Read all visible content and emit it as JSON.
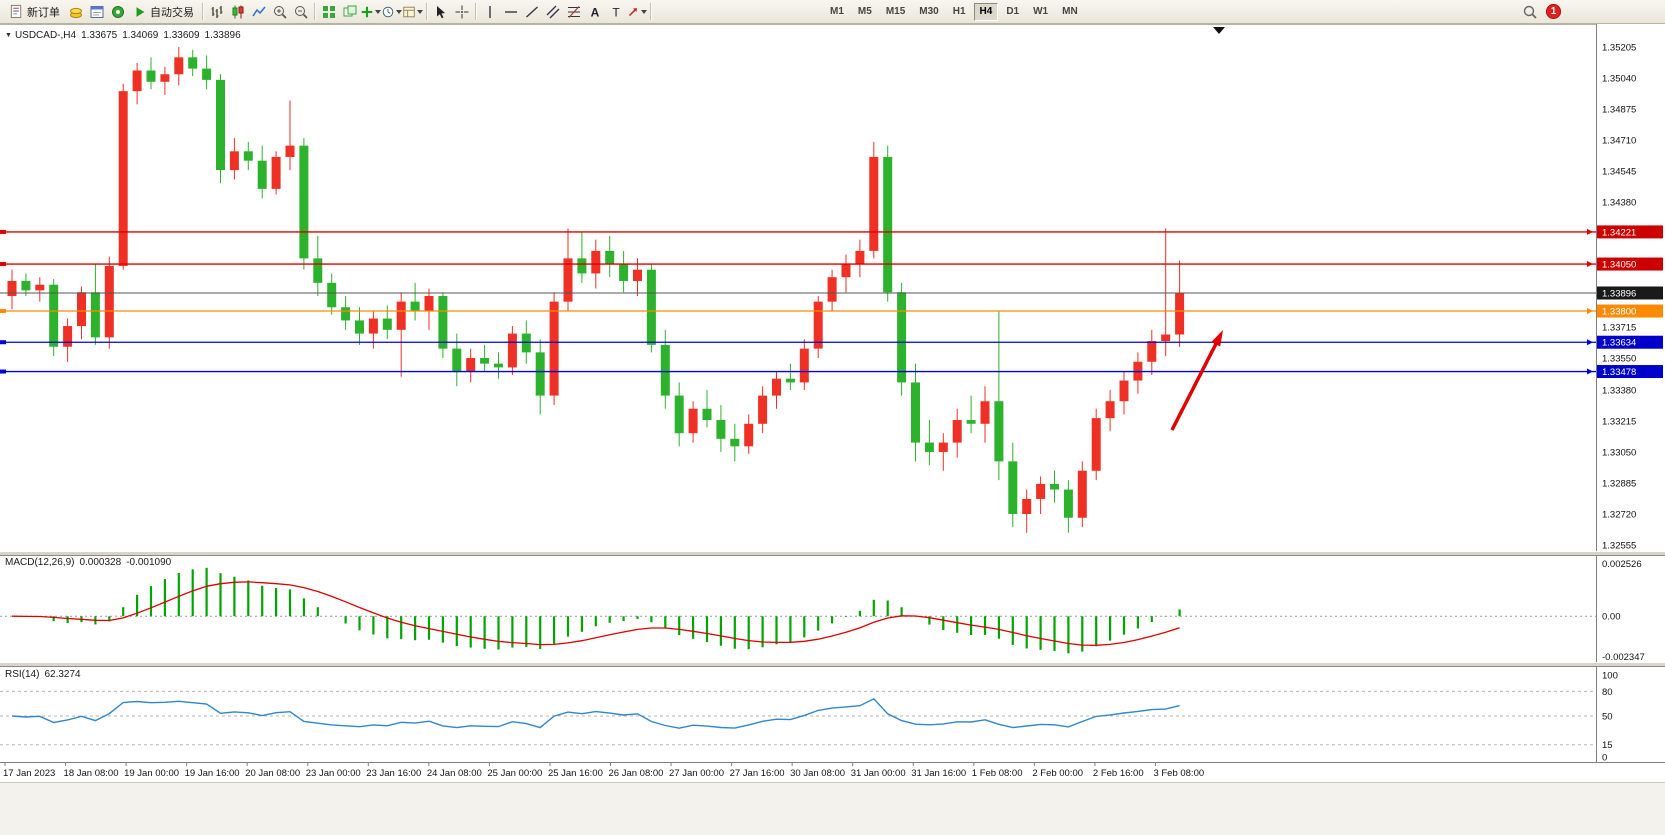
{
  "toolbar": {
    "new_order_label": "新订单",
    "autotrading_label": "自动交易",
    "timeframes": [
      "M1",
      "M5",
      "M15",
      "M30",
      "H1",
      "H4",
      "D1",
      "W1",
      "MN"
    ],
    "active_timeframe": "H4",
    "notification_count": "1"
  },
  "chart": {
    "symbol_label": "USDCAD-,H4",
    "ohlc": {
      "open": "1.33675",
      "high": "1.34069",
      "low": "1.33609",
      "close": "1.33896"
    },
    "price_axis_labels": [
      "1.35205",
      "1.35040",
      "1.34875",
      "1.34710",
      "1.34545",
      "1.34380",
      "1.33715",
      "1.33550",
      "1.33380",
      "1.33215",
      "1.33050",
      "1.32885",
      "1.32720",
      "1.32555"
    ],
    "time_axis_labels": [
      "17 Jan 2023",
      "18 Jan 08:00",
      "19 Jan 00:00",
      "19 Jan 16:00",
      "20 Jan 08:00",
      "23 Jan 00:00",
      "23 Jan 16:00",
      "24 Jan 08:00",
      "25 Jan 00:00",
      "25 Jan 16:00",
      "26 Jan 08:00",
      "27 Jan 00:00",
      "27 Jan 16:00",
      "30 Jan 08:00",
      "31 Jan 00:00",
      "31 Jan 16:00",
      "1 Feb 08:00",
      "2 Feb 00:00",
      "2 Feb 16:00",
      "3 Feb 08:00"
    ]
  },
  "indicators": {
    "macd": {
      "name": "MACD(12,26,9)",
      "value1": "0.000328",
      "value2": "-0.001090",
      "axis": [
        "0.002526",
        "0.00",
        "-0.002347"
      ]
    },
    "rsi": {
      "name": "RSI(14)",
      "value": "62.3274",
      "axis": [
        "100",
        "80",
        "50",
        "15",
        "0"
      ],
      "levels": [
        80,
        50,
        15
      ]
    }
  },
  "chart_data": {
    "type": "candlestick",
    "symbol": "USDCAD",
    "timeframe": "H4",
    "colors": {
      "up": "#ee3124",
      "down": "#2db22d",
      "macd_hist": "#00a500",
      "macd_signal": "#e00000",
      "rsi_line": "#2f86d2"
    },
    "price_range": {
      "min": 1.32555,
      "max": 1.35205
    },
    "hlines": [
      {
        "price": 1.34221,
        "color": "#dd0000",
        "tag": "#cc0000",
        "anchors": true
      },
      {
        "price": 1.3405,
        "color": "#dd0000",
        "tag": "#cc0000",
        "anchors": true
      },
      {
        "price": 1.33896,
        "color": "#555555",
        "tag": "#1a1a1a",
        "anchors": false
      },
      {
        "price": 1.338,
        "color": "#ff8a00",
        "tag": "#ff8a00",
        "anchors": true
      },
      {
        "price": 1.33634,
        "color": "#0000dd",
        "tag": "#0000cc",
        "anchors": true
      },
      {
        "price": 1.33478,
        "color": "#0000dd",
        "tag": "#0000cc",
        "anchors": true
      }
    ],
    "annotation_arrow": {
      "color": "#e00000",
      "tail": [
        1172,
        406
      ],
      "tip": [
        1223,
        306
      ]
    },
    "candles": [
      [
        1.3388,
        1.3402,
        1.3381,
        1.3396
      ],
      [
        1.3396,
        1.34,
        1.3388,
        1.3391
      ],
      [
        1.3391,
        1.3398,
        1.3385,
        1.3394
      ],
      [
        1.3394,
        1.3397,
        1.3356,
        1.3361
      ],
      [
        1.3361,
        1.3376,
        1.3353,
        1.3372
      ],
      [
        1.3372,
        1.3393,
        1.3365,
        1.339
      ],
      [
        1.339,
        1.3405,
        1.3362,
        1.3366
      ],
      [
        1.3366,
        1.3409,
        1.336,
        1.3404
      ],
      [
        1.3404,
        1.3501,
        1.3402,
        1.3497
      ],
      [
        1.3497,
        1.3512,
        1.349,
        1.3508
      ],
      [
        1.3508,
        1.3515,
        1.3498,
        1.3502
      ],
      [
        1.3502,
        1.351,
        1.3495,
        1.3506
      ],
      [
        1.3506,
        1.35205,
        1.35,
        1.3515
      ],
      [
        1.3515,
        1.3519,
        1.3505,
        1.3509
      ],
      [
        1.3509,
        1.3516,
        1.3498,
        1.3503
      ],
      [
        1.3503,
        1.3506,
        1.3448,
        1.3455
      ],
      [
        1.3455,
        1.3472,
        1.345,
        1.3465
      ],
      [
        1.3465,
        1.347,
        1.3455,
        1.346
      ],
      [
        1.346,
        1.3468,
        1.344,
        1.3445
      ],
      [
        1.3445,
        1.3465,
        1.3442,
        1.3462
      ],
      [
        1.3462,
        1.3492,
        1.3455,
        1.3468
      ],
      [
        1.3468,
        1.3472,
        1.3402,
        1.3408
      ],
      [
        1.3408,
        1.342,
        1.3388,
        1.3395
      ],
      [
        1.3395,
        1.34,
        1.3378,
        1.3382
      ],
      [
        1.3382,
        1.3388,
        1.337,
        1.3375
      ],
      [
        1.3375,
        1.3382,
        1.3362,
        1.3368
      ],
      [
        1.3368,
        1.338,
        1.336,
        1.3376
      ],
      [
        1.3376,
        1.3383,
        1.3365,
        1.337
      ],
      [
        1.337,
        1.339,
        1.3345,
        1.3385
      ],
      [
        1.3385,
        1.3395,
        1.3375,
        1.338
      ],
      [
        1.338,
        1.3392,
        1.337,
        1.3388
      ],
      [
        1.3388,
        1.339,
        1.3355,
        1.336
      ],
      [
        1.336,
        1.3368,
        1.334,
        1.3348
      ],
      [
        1.3348,
        1.336,
        1.3342,
        1.3355
      ],
      [
        1.3355,
        1.3362,
        1.3348,
        1.3352
      ],
      [
        1.3352,
        1.3358,
        1.3344,
        1.335
      ],
      [
        1.335,
        1.3372,
        1.3346,
        1.3368
      ],
      [
        1.3368,
        1.3375,
        1.3352,
        1.3358
      ],
      [
        1.3358,
        1.3365,
        1.3325,
        1.3335
      ],
      [
        1.3335,
        1.339,
        1.333,
        1.3385
      ],
      [
        1.3385,
        1.3424,
        1.338,
        1.3408
      ],
      [
        1.3408,
        1.3422,
        1.3395,
        1.34
      ],
      [
        1.34,
        1.3418,
        1.3392,
        1.3412
      ],
      [
        1.3412,
        1.342,
        1.3398,
        1.3405
      ],
      [
        1.3405,
        1.3412,
        1.339,
        1.3396
      ],
      [
        1.3396,
        1.3408,
        1.3388,
        1.3402
      ],
      [
        1.3402,
        1.3405,
        1.3358,
        1.3362
      ],
      [
        1.3362,
        1.337,
        1.3328,
        1.3335
      ],
      [
        1.3335,
        1.3342,
        1.3308,
        1.3315
      ],
      [
        1.3315,
        1.3332,
        1.331,
        1.3328
      ],
      [
        1.3328,
        1.3338,
        1.3318,
        1.3322
      ],
      [
        1.3322,
        1.333,
        1.3305,
        1.3312
      ],
      [
        1.3312,
        1.332,
        1.33,
        1.3308
      ],
      [
        1.3308,
        1.3325,
        1.3304,
        1.332
      ],
      [
        1.332,
        1.334,
        1.3315,
        1.3335
      ],
      [
        1.3335,
        1.3348,
        1.3328,
        1.3344
      ],
      [
        1.3344,
        1.3352,
        1.3338,
        1.3342
      ],
      [
        1.3342,
        1.3365,
        1.3338,
        1.336
      ],
      [
        1.336,
        1.3388,
        1.3355,
        1.3385
      ],
      [
        1.3385,
        1.3402,
        1.338,
        1.3398
      ],
      [
        1.3398,
        1.341,
        1.339,
        1.3405
      ],
      [
        1.3405,
        1.3418,
        1.3398,
        1.3412
      ],
      [
        1.3412,
        1.347,
        1.3408,
        1.3462
      ],
      [
        1.3462,
        1.3468,
        1.3385,
        1.339
      ],
      [
        1.339,
        1.3395,
        1.3335,
        1.3342
      ],
      [
        1.3342,
        1.3352,
        1.33,
        1.331
      ],
      [
        1.331,
        1.3322,
        1.3298,
        1.3305
      ],
      [
        1.3305,
        1.3315,
        1.3295,
        1.331
      ],
      [
        1.331,
        1.3328,
        1.3302,
        1.3322
      ],
      [
        1.3322,
        1.3335,
        1.3315,
        1.332
      ],
      [
        1.332,
        1.334,
        1.331,
        1.3332
      ],
      [
        1.3332,
        1.338,
        1.329,
        1.33
      ],
      [
        1.33,
        1.331,
        1.3265,
        1.3272
      ],
      [
        1.3272,
        1.3285,
        1.3262,
        1.328
      ],
      [
        1.328,
        1.3292,
        1.3272,
        1.3288
      ],
      [
        1.3288,
        1.3295,
        1.3278,
        1.3285
      ],
      [
        1.3285,
        1.329,
        1.3262,
        1.327
      ],
      [
        1.327,
        1.33,
        1.3265,
        1.3295
      ],
      [
        1.3295,
        1.3328,
        1.329,
        1.3323
      ],
      [
        1.3323,
        1.3338,
        1.3316,
        1.3332
      ],
      [
        1.3332,
        1.3348,
        1.3325,
        1.3343
      ],
      [
        1.3343,
        1.3358,
        1.3336,
        1.3353
      ],
      [
        1.3353,
        1.337,
        1.3346,
        1.3364
      ],
      [
        1.3364,
        1.3424,
        1.3356,
        1.33675
      ],
      [
        1.33675,
        1.34069,
        1.33609,
        1.33896
      ]
    ]
  }
}
